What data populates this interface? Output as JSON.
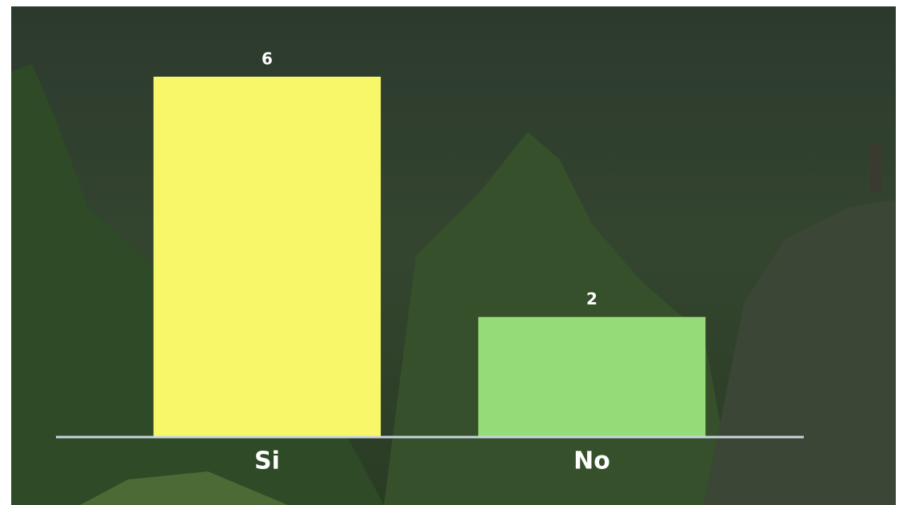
{
  "chart_data": {
    "type": "bar",
    "categories": [
      "Si",
      "No"
    ],
    "values": [
      6,
      2
    ],
    "colors": [
      "#f8f76a",
      "#95dc78"
    ]
  }
}
